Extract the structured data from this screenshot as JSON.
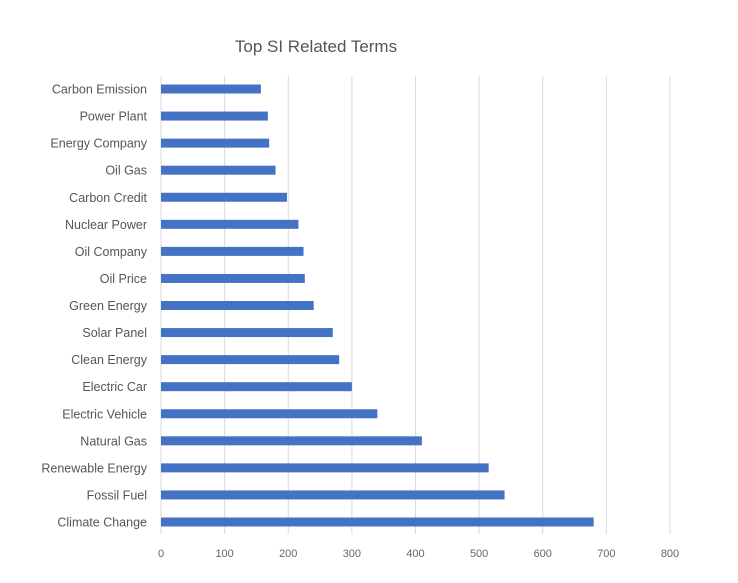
{
  "chart_data": {
    "type": "bar",
    "orientation": "horizontal",
    "title": "Top SI Related Terms",
    "categories": [
      "Carbon Emission",
      "Power Plant",
      "Energy Company",
      "Oil Gas",
      "Carbon Credit",
      "Nuclear Power",
      "Oil Company",
      "Oil Price",
      "Green Energy",
      "Solar Panel",
      "Clean Energy",
      "Electric Car",
      "Electric Vehicle",
      "Natural Gas",
      "Renewable Energy",
      "Fossil Fuel",
      "Climate Change"
    ],
    "values": [
      157,
      168,
      170,
      180,
      198,
      216,
      224,
      226,
      240,
      270,
      280,
      300,
      340,
      410,
      515,
      540,
      680
    ],
    "xlim": [
      0,
      800
    ],
    "xticks": [
      "0",
      "100",
      "200",
      "300",
      "400",
      "500",
      "600",
      "700",
      "800"
    ],
    "grid": "vertical",
    "bar_color": "#4472c4",
    "legend": "none"
  }
}
